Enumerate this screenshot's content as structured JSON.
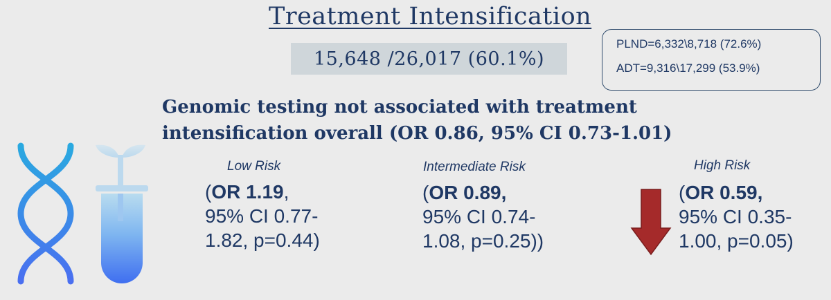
{
  "title": "Treatment Intensification",
  "overall": "15,648 /26,017 (60.1%)",
  "details": {
    "plnd": "PLND=6,332\\8,718 (72.6%)",
    "adt": "ADT=9,316\\17,299 (53.9%)"
  },
  "headline": {
    "line1": "Genomic testing not associated with treatment",
    "line2": "intensification overall (OR 0.86, 95% CI 0.73-1.01)"
  },
  "groups": [
    {
      "label": "Low Risk",
      "open": "(",
      "or": "OR 1.19",
      "sep": ",",
      "line2": "95% CI 0.77-",
      "line3": "1.82, p=0.44)"
    },
    {
      "label": "Intermediate Risk",
      "open": "(",
      "or": "OR 0.89,",
      "sep": "",
      "line2": "95% CI 0.74-",
      "line3": "1.08, p=0.25))"
    },
    {
      "label": "High Risk",
      "open": "(",
      "or": "OR 0.59,",
      "sep": "",
      "line2": "95% CI 0.35-",
      "line3": "1.00, p=0.05)"
    }
  ],
  "colors": {
    "text": "#1f3864",
    "background": "#ebebeb",
    "highlight_box": "#cfd6da",
    "arrow": "#a52a2a",
    "dna_gradient_top": "#2aa9e0",
    "dna_gradient_bottom": "#4a6ff0",
    "tube_top": "#b9dcef",
    "tube_bottom": "#3f6ff0"
  },
  "icons": {
    "dna": "dna-icon",
    "test_tube": "test-tube-plant-icon",
    "arrow": "down-arrow-icon"
  }
}
